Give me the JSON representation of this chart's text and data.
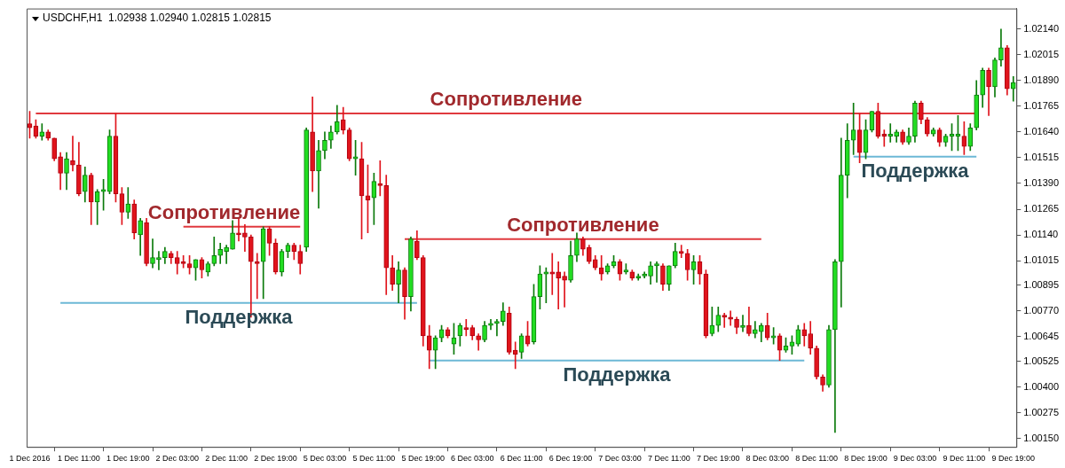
{
  "chart_data": {
    "type": "candlestick",
    "title": "USDCHF,H1  1.02938 1.02940 1.02815 1.02815",
    "categories": [
      "1 Dec 2016",
      null,
      null,
      null,
      null,
      null,
      null,
      null,
      "1 Dec 11:00",
      null,
      null,
      null,
      null,
      null,
      null,
      null,
      "1 Dec 19:00",
      null,
      null,
      null,
      null,
      null,
      null,
      null,
      "2 Dec 03:00",
      null,
      null,
      null,
      null,
      null,
      null,
      null,
      "2 Dec 11:00",
      null,
      null,
      null,
      null,
      null,
      null,
      null,
      "2 Dec 19:00",
      null,
      null,
      null,
      null,
      null,
      null,
      null,
      "5 Dec 03:00",
      null,
      null,
      null,
      null,
      null,
      null,
      null,
      "5 Dec 11:00",
      null,
      null,
      null,
      null,
      null,
      null,
      null,
      "5 Dec 19:00",
      null,
      null,
      null,
      null,
      null,
      null,
      null,
      "6 Dec 03:00",
      null,
      null,
      null,
      null,
      null,
      null,
      null,
      "6 Dec 11:00",
      null,
      null,
      null,
      null,
      null,
      null,
      null,
      "6 Dec 19:00",
      null,
      null,
      null,
      null,
      null,
      null,
      null,
      "7 Dec 03:00",
      null,
      null,
      null,
      null,
      null,
      null,
      null,
      "7 Dec 11:00",
      null,
      null,
      null,
      null,
      null,
      null,
      null,
      "7 Dec 19:00",
      null,
      null,
      null,
      null,
      null,
      null,
      null,
      "8 Dec 03:00",
      null,
      null,
      null,
      null,
      null,
      null,
      null,
      "8 Dec 11:00",
      null,
      null,
      null,
      null,
      null,
      null,
      null,
      "8 Dec 19:00",
      null,
      null,
      null,
      null,
      null,
      null,
      null,
      "9 Dec 03:00",
      null,
      null,
      null,
      null,
      null,
      null,
      null,
      "9 Dec 11:00",
      null,
      null,
      null,
      null,
      null,
      null,
      null,
      "9 Dec 19:00"
    ],
    "ohlc": [
      [
        1.0168,
        1.0174,
        1.0161,
        1.0166
      ],
      [
        1.0167,
        1.017,
        1.0161,
        1.0162
      ],
      [
        1.0162,
        1.0168,
        1.016,
        1.0164
      ],
      [
        1.0164,
        1.0165,
        1.016,
        1.0161
      ],
      [
        1.0161,
        1.0161,
        1.015,
        1.0151
      ],
      [
        1.0152,
        1.0154,
        1.0136,
        1.0144
      ],
      [
        1.0144,
        1.0154,
        1.0136,
        1.0151
      ],
      [
        1.015,
        1.0162,
        1.0145,
        1.0148
      ],
      [
        1.0148,
        1.0159,
        1.0133,
        1.0134
      ],
      [
        1.0135,
        1.0147,
        1.013,
        1.0143
      ],
      [
        1.0143,
        1.0144,
        1.0119,
        1.013
      ],
      [
        1.013,
        1.0136,
        1.0119,
        1.0135
      ],
      [
        1.0135,
        1.0141,
        1.0126,
        1.0136
      ],
      [
        1.0135,
        1.0165,
        1.0134,
        1.0162
      ],
      [
        1.0162,
        1.0173,
        1.013,
        1.0134
      ],
      [
        1.0134,
        1.0137,
        1.0119,
        1.0125
      ],
      [
        1.0125,
        1.0137,
        1.0122,
        1.0129
      ],
      [
        1.0129,
        1.0131,
        1.0112,
        1.0115
      ],
      [
        1.0114,
        1.0122,
        1.0104,
        1.0121
      ],
      [
        1.012,
        1.0122,
        1.0099,
        1.01
      ],
      [
        1.01,
        1.0112,
        1.0098,
        1.0103
      ],
      [
        1.0102,
        1.0106,
        1.0097,
        1.0103
      ],
      [
        1.0103,
        1.0108,
        1.01,
        1.0106
      ],
      [
        1.0105,
        1.0106,
        1.01,
        1.0103
      ],
      [
        1.0103,
        1.0106,
        1.0095,
        1.01
      ],
      [
        1.0101,
        1.0104,
        1.0098,
        1.01
      ],
      [
        1.01,
        1.0104,
        1.0095,
        1.0098
      ],
      [
        1.0098,
        1.0102,
        1.0092,
        1.0102
      ],
      [
        1.0102,
        1.0103,
        1.0093,
        1.0097
      ],
      [
        1.0096,
        1.0101,
        1.0094,
        1.01
      ],
      [
        1.01,
        1.0113,
        1.0099,
        1.0104
      ],
      [
        1.0104,
        1.011,
        1.01,
        1.0107
      ],
      [
        1.0106,
        1.0109,
        1.01,
        1.0108
      ],
      [
        1.0107,
        1.0121,
        1.0107,
        1.0115
      ],
      [
        1.0115,
        1.0122,
        1.0111,
        1.0114
      ],
      [
        1.0115,
        1.0119,
        1.0106,
        1.0113
      ],
      [
        1.0113,
        1.0114,
        1.0074,
        1.0101
      ],
      [
        1.0101,
        1.0105,
        1.0083,
        1.01
      ],
      [
        1.0101,
        1.0118,
        1.0083,
        1.0117
      ],
      [
        1.0117,
        1.0118,
        1.0104,
        1.011
      ],
      [
        1.011,
        1.0112,
        1.0095,
        1.0096
      ],
      [
        1.0096,
        1.0107,
        1.0094,
        1.0106
      ],
      [
        1.0106,
        1.011,
        1.0103,
        1.0109
      ],
      [
        1.0109,
        1.011,
        1.0102,
        1.0106
      ],
      [
        1.0106,
        1.0109,
        1.0095,
        1.01
      ],
      [
        1.0108,
        1.0166,
        1.0106,
        1.0165
      ],
      [
        1.0164,
        1.0181,
        1.0135,
        1.0145
      ],
      [
        1.0145,
        1.016,
        1.0127,
        1.0155
      ],
      [
        1.0155,
        1.0164,
        1.0151,
        1.016
      ],
      [
        1.016,
        1.0167,
        1.0156,
        1.0164
      ],
      [
        1.0164,
        1.0177,
        1.0163,
        1.0169
      ],
      [
        1.017,
        1.0176,
        1.0163,
        1.0165
      ],
      [
        1.0165,
        1.0166,
        1.015,
        1.0151
      ],
      [
        1.0151,
        1.016,
        1.0143,
        1.0152
      ],
      [
        1.0151,
        1.0159,
        1.0112,
        1.0133
      ],
      [
        1.0133,
        1.0148,
        1.0115,
        1.0131
      ],
      [
        1.0132,
        1.0144,
        1.0119,
        1.014
      ],
      [
        1.0139,
        1.015,
        1.0133,
        1.0138
      ],
      [
        1.0138,
        1.0143,
        1.0085,
        1.0098
      ],
      [
        1.0098,
        1.0104,
        1.0087,
        1.009
      ],
      [
        1.009,
        1.0101,
        1.0081,
        1.0097
      ],
      [
        1.0097,
        1.0098,
        1.0073,
        1.0084
      ],
      [
        1.0084,
        1.0113,
        1.0077,
        1.0112
      ],
      [
        1.0111,
        1.0116,
        1.0102,
        1.0103
      ],
      [
        1.0103,
        1.0104,
        1.006,
        1.0065
      ],
      [
        1.0065,
        1.007,
        1.0049,
        1.0058
      ],
      [
        1.0058,
        1.0065,
        1.0049,
        1.0064
      ],
      [
        1.0064,
        1.007,
        1.0062,
        1.0068
      ],
      [
        1.0068,
        1.0069,
        1.0064,
        1.0065
      ],
      [
        1.0061,
        1.0071,
        1.0056,
        1.0064
      ],
      [
        1.0065,
        1.0071,
        1.006,
        1.007
      ],
      [
        1.0069,
        1.0073,
        1.0065,
        1.0068
      ],
      [
        1.0069,
        1.007,
        1.0063,
        1.0065
      ],
      [
        1.0065,
        1.0066,
        1.0058,
        1.0063
      ],
      [
        1.0063,
        1.0072,
        1.0062,
        1.007
      ],
      [
        1.007,
        1.0073,
        1.0068,
        1.0071
      ],
      [
        1.0071,
        1.0073,
        1.0065,
        1.0072
      ],
      [
        1.0072,
        1.0081,
        1.007,
        1.0077
      ],
      [
        1.0076,
        1.0079,
        1.0056,
        1.0057
      ],
      [
        1.0058,
        1.0062,
        1.0049,
        1.0056
      ],
      [
        1.0057,
        1.0066,
        1.0054,
        1.0065
      ],
      [
        1.0065,
        1.0072,
        1.006,
        1.0061
      ],
      [
        1.0062,
        1.009,
        1.0061,
        1.0084
      ],
      [
        1.0084,
        1.0099,
        1.0078,
        1.0095
      ],
      [
        1.0095,
        1.0098,
        1.0081,
        1.0096
      ],
      [
        1.0096,
        1.0105,
        1.0085,
        1.0095
      ],
      [
        1.0096,
        1.0101,
        1.0078,
        1.0093
      ],
      [
        1.0094,
        1.0096,
        1.0079,
        1.0092
      ],
      [
        1.0092,
        1.0111,
        1.0091,
        1.0104
      ],
      [
        1.0104,
        1.0115,
        1.0101,
        1.0112
      ],
      [
        1.0112,
        1.0113,
        1.0104,
        1.0107
      ],
      [
        1.0108,
        1.0109,
        1.01,
        1.0101
      ],
      [
        1.0102,
        1.0104,
        1.0097,
        1.0098
      ],
      [
        1.0098,
        1.0104,
        1.0092,
        1.0095
      ],
      [
        1.0096,
        1.01,
        1.0095,
        1.0099
      ],
      [
        1.0099,
        1.0104,
        1.0098,
        1.0101
      ],
      [
        1.0101,
        1.0102,
        1.0092,
        1.0095
      ],
      [
        1.0096,
        1.01,
        1.0095,
        1.0097
      ],
      [
        1.0096,
        1.0097,
        1.0092,
        1.0093
      ],
      [
        1.0093,
        1.0095,
        1.0092,
        1.0094
      ],
      [
        1.0094,
        1.0096,
        1.0093,
        1.0095
      ],
      [
        1.0094,
        1.0101,
        1.009,
        1.0099
      ],
      [
        1.0099,
        1.0101,
        1.0091,
        1.01
      ],
      [
        1.0099,
        1.01,
        1.0087,
        1.009
      ],
      [
        1.009,
        1.0099,
        1.0087,
        1.0099
      ],
      [
        1.0099,
        1.011,
        1.0098,
        1.0106
      ],
      [
        1.0106,
        1.0109,
        1.0103,
        1.0105
      ],
      [
        1.0105,
        1.0107,
        1.0092,
        1.0097
      ],
      [
        1.0097,
        1.0104,
        1.009,
        1.0101
      ],
      [
        1.0101,
        1.0104,
        1.009,
        1.0095
      ],
      [
        1.0095,
        1.0097,
        1.0064,
        1.0065
      ],
      [
        1.0066,
        1.0079,
        1.0065,
        1.007
      ],
      [
        1.007,
        1.0079,
        1.0067,
        1.0075
      ],
      [
        1.0075,
        1.0076,
        1.0069,
        1.0074
      ],
      [
        1.0074,
        1.0077,
        1.007,
        1.0073
      ],
      [
        1.0073,
        1.0074,
        1.0066,
        1.0069
      ],
      [
        1.0069,
        1.0075,
        1.0067,
        1.007
      ],
      [
        1.007,
        1.0079,
        1.0065,
        1.0066
      ],
      [
        1.0066,
        1.0072,
        1.0064,
        1.0068
      ],
      [
        1.0067,
        1.0071,
        1.0062,
        1.007
      ],
      [
        1.007,
        1.0076,
        1.0063,
        1.0064
      ],
      [
        1.0064,
        1.0069,
        1.0061,
        1.0065
      ],
      [
        1.0065,
        1.0066,
        1.0053,
        1.0058
      ],
      [
        1.0058,
        1.0064,
        1.0057,
        1.006
      ],
      [
        1.006,
        1.0065,
        1.0056,
        1.0062
      ],
      [
        1.0061,
        1.007,
        1.006,
        1.0068
      ],
      [
        1.0068,
        1.0071,
        1.006,
        1.0065
      ],
      [
        1.0066,
        1.0072,
        1.0056,
        1.0059
      ],
      [
        1.0059,
        1.006,
        1.0044,
        1.0045
      ],
      [
        1.0045,
        1.0046,
        1.0038,
        1.0041
      ],
      [
        1.0041,
        1.007,
        1.004,
        1.0068
      ],
      [
        1.0068,
        1.0102,
        1.0018,
        1.0101
      ],
      [
        1.0101,
        1.0161,
        1.0079,
        1.0143
      ],
      [
        1.0143,
        1.0168,
        1.0132,
        1.016
      ],
      [
        1.016,
        1.0178,
        1.0153,
        1.0165
      ],
      [
        1.0165,
        1.0173,
        1.0149,
        1.0154
      ],
      [
        1.0154,
        1.017,
        1.0151,
        1.0165
      ],
      [
        1.0165,
        1.0174,
        1.0164,
        1.0174
      ],
      [
        1.0174,
        1.0178,
        1.0161,
        1.0162
      ],
      [
        1.0163,
        1.0165,
        1.0157,
        1.0162
      ],
      [
        1.0162,
        1.0168,
        1.0159,
        1.0163
      ],
      [
        1.0162,
        1.0165,
        1.0159,
        1.0164
      ],
      [
        1.0164,
        1.0165,
        1.0158,
        1.0159
      ],
      [
        1.0159,
        1.0166,
        1.0158,
        1.0162
      ],
      [
        1.0162,
        1.0179,
        1.0159,
        1.0178
      ],
      [
        1.0178,
        1.0179,
        1.0168,
        1.017
      ],
      [
        1.017,
        1.0171,
        1.0162,
        1.0163
      ],
      [
        1.0163,
        1.0166,
        1.0162,
        1.0165
      ],
      [
        1.0165,
        1.0166,
        1.0157,
        1.0159
      ],
      [
        1.0159,
        1.0163,
        1.0157,
        1.0162
      ],
      [
        1.0162,
        1.0168,
        1.0155,
        1.0163
      ],
      [
        1.0162,
        1.0172,
        1.0155,
        1.0163
      ],
      [
        1.0162,
        1.0169,
        1.0153,
        1.0157
      ],
      [
        1.0157,
        1.0168,
        1.0155,
        1.0166
      ],
      [
        1.0166,
        1.0189,
        1.0165,
        1.0182
      ],
      [
        1.0182,
        1.0195,
        1.0176,
        1.0194
      ],
      [
        1.0194,
        1.0195,
        1.0172,
        1.0186
      ],
      [
        1.0186,
        1.02,
        1.0181,
        1.0199
      ],
      [
        1.0199,
        1.0214,
        1.0196,
        1.0205
      ],
      [
        1.0205,
        1.0206,
        1.0182,
        1.0185
      ],
      [
        1.0185,
        1.0191,
        1.0179,
        1.0188
      ]
    ],
    "series": [
      {
        "type": "line",
        "name": "Сопротивление",
        "color": "#e0393e",
        "values": [
          null,
          1.0173,
          1.0173,
          1.0173,
          1.0173,
          1.0173,
          1.0173,
          1.0173,
          1.0173,
          1.0173,
          1.0173,
          1.0173,
          1.0173,
          1.0173,
          1.0173,
          1.0173,
          1.0173,
          1.0173,
          1.0173,
          1.0173,
          1.0173,
          1.0173,
          1.0173,
          1.0173,
          1.0173,
          1.0173,
          1.0173,
          1.0173,
          1.0173,
          1.0173,
          1.0173,
          1.0173,
          1.0173,
          1.0173,
          1.0173,
          1.0173,
          1.0173,
          1.0173,
          1.0173,
          1.0173,
          1.0173,
          1.0173,
          1.0173,
          1.0173,
          1.0173,
          1.0173,
          1.0173,
          1.0173,
          1.0173,
          1.0173,
          1.0173,
          1.0173,
          1.0173,
          1.0173,
          1.0173,
          1.0173,
          1.0173,
          1.0173,
          1.0173,
          1.0173,
          1.0173,
          1.0173,
          1.0173,
          1.0173,
          1.0173,
          1.0173,
          1.0173,
          1.0173,
          1.0173,
          1.0173,
          1.0173,
          1.0173,
          1.0173,
          1.0173,
          1.0173,
          1.0173,
          1.0173,
          1.0173,
          1.0173,
          1.0173,
          1.0173,
          1.0173,
          1.0173,
          1.0173,
          1.0173,
          1.0173,
          1.0173,
          1.0173,
          1.0173,
          1.0173,
          1.0173,
          1.0173,
          1.0173,
          1.0173,
          1.0173,
          1.0173,
          1.0173,
          1.0173,
          1.0173,
          1.0173,
          1.0173,
          1.0173,
          1.0173,
          1.0173,
          1.0173,
          1.0173,
          1.0173,
          1.0173,
          1.0173,
          1.0173,
          1.0173,
          1.0173,
          1.0173,
          1.0173,
          1.0173,
          1.0173,
          1.0173,
          1.0173,
          1.0173,
          1.0173,
          1.0173,
          1.0173,
          1.0173,
          1.0173,
          1.0173,
          1.0173,
          1.0173,
          1.0173,
          1.0173,
          1.0173,
          1.0173,
          1.0173,
          1.0173,
          1.0173,
          1.0173,
          1.0173,
          1.0173,
          1.0173,
          1.0173,
          1.0173,
          1.0173,
          1.0173,
          1.0173,
          1.0173,
          1.0173,
          1.0173,
          1.0173,
          1.0173,
          1.0173,
          1.0173,
          1.0173,
          1.0173,
          1.0173,
          1.0173,
          1.0173,
          null,
          null,
          null,
          null,
          null,
          null
        ]
      },
      {
        "type": "line",
        "name": "Сопротивление",
        "color": "#e0393e",
        "values": [
          null,
          null,
          null,
          null,
          null,
          null,
          null,
          null,
          null,
          null,
          null,
          null,
          null,
          null,
          null,
          null,
          null,
          null,
          null,
          null,
          null,
          null,
          null,
          null,
          null,
          1.0118,
          1.0118,
          1.0118,
          1.0118,
          1.0118,
          1.0118,
          1.0118,
          1.0118,
          1.0118,
          1.0118,
          1.0118,
          1.0118,
          1.0118,
          1.0118,
          1.0118,
          1.0118,
          1.0118,
          1.0118,
          1.0118,
          1.0118,
          null,
          null,
          null,
          null,
          null,
          null,
          null,
          null,
          null,
          null,
          null,
          null,
          null,
          null,
          null,
          null,
          null,
          null,
          null,
          null,
          null,
          null,
          null,
          null,
          null,
          null,
          null,
          null,
          null,
          null,
          null,
          null,
          null,
          null,
          null,
          null,
          null,
          null,
          null,
          null,
          null,
          null,
          null,
          null,
          null,
          null,
          null,
          null,
          null,
          null,
          null,
          null,
          null,
          null,
          null,
          null,
          null,
          null,
          null,
          null,
          null,
          null,
          null,
          null,
          null,
          null,
          null,
          null,
          null,
          null,
          null,
          null,
          null,
          null,
          null,
          null,
          null,
          null,
          null,
          null,
          null,
          null,
          null,
          null,
          null,
          null,
          null,
          null,
          null,
          null,
          null,
          null,
          null,
          null,
          null,
          null,
          null,
          null,
          null,
          null,
          null,
          null,
          null,
          null,
          null,
          null,
          null,
          null,
          null,
          null,
          null,
          null,
          null,
          null,
          null,
          null
        ]
      },
      {
        "type": "line",
        "name": "Сопротивление",
        "color": "#e0393e",
        "values": [
          null,
          null,
          null,
          null,
          null,
          null,
          null,
          null,
          null,
          null,
          null,
          null,
          null,
          null,
          null,
          null,
          null,
          null,
          null,
          null,
          null,
          null,
          null,
          null,
          null,
          null,
          null,
          null,
          null,
          null,
          null,
          null,
          null,
          null,
          null,
          null,
          null,
          null,
          null,
          null,
          null,
          null,
          null,
          null,
          null,
          null,
          null,
          null,
          null,
          null,
          null,
          null,
          null,
          null,
          null,
          null,
          null,
          null,
          null,
          null,
          null,
          1.0112,
          1.0112,
          1.0112,
          1.0112,
          1.0112,
          1.0112,
          1.0112,
          1.0112,
          1.0112,
          1.0112,
          1.0112,
          1.0112,
          1.0112,
          1.0112,
          1.0112,
          1.0112,
          1.0112,
          1.0112,
          1.0112,
          1.0112,
          1.0112,
          1.0112,
          1.0112,
          1.0112,
          1.0112,
          1.0112,
          1.0112,
          1.0112,
          1.0112,
          1.0112,
          1.0112,
          1.0112,
          1.0112,
          1.0112,
          1.0112,
          1.0112,
          1.0112,
          1.0112,
          1.0112,
          1.0112,
          1.0112,
          1.0112,
          1.0112,
          1.0112,
          1.0112,
          1.0112,
          1.0112,
          1.0112,
          1.0112,
          1.0112,
          1.0112,
          1.0112,
          1.0112,
          1.0112,
          1.0112,
          1.0112,
          1.0112,
          1.0112,
          1.0112,
          null,
          null,
          null,
          null,
          null,
          null,
          null,
          null,
          null,
          null,
          null,
          null,
          null,
          null,
          null,
          null,
          null,
          null,
          null,
          null,
          null,
          null,
          null,
          null,
          null,
          null,
          null,
          null,
          null,
          null,
          null,
          null,
          null,
          null,
          null,
          null,
          null,
          null,
          null,
          null,
          null
        ]
      },
      {
        "type": "line",
        "name": "Поддержка",
        "color": "#6cb8d6",
        "values": [
          null,
          null,
          null,
          null,
          null,
          1.0081,
          1.0081,
          1.0081,
          1.0081,
          1.0081,
          1.0081,
          1.0081,
          1.0081,
          1.0081,
          1.0081,
          1.0081,
          1.0081,
          1.0081,
          1.0081,
          1.0081,
          1.0081,
          1.0081,
          1.0081,
          1.0081,
          1.0081,
          1.0081,
          1.0081,
          1.0081,
          1.0081,
          1.0081,
          1.0081,
          1.0081,
          1.0081,
          1.0081,
          1.0081,
          1.0081,
          1.0081,
          1.0081,
          1.0081,
          1.0081,
          1.0081,
          1.0081,
          1.0081,
          1.0081,
          1.0081,
          1.0081,
          1.0081,
          1.0081,
          1.0081,
          1.0081,
          1.0081,
          1.0081,
          1.0081,
          1.0081,
          1.0081,
          1.0081,
          1.0081,
          1.0081,
          1.0081,
          1.0081,
          1.0081,
          1.0081,
          1.0081,
          1.0081,
          null,
          null,
          null,
          null,
          null,
          null,
          null,
          null,
          null,
          null,
          null,
          null,
          null,
          null,
          null,
          null,
          null,
          null,
          null,
          null,
          null,
          null,
          null,
          null,
          null,
          null,
          null,
          null,
          null,
          null,
          null,
          null,
          null,
          null,
          null,
          null,
          null,
          null,
          null,
          null,
          null,
          null,
          null,
          null,
          null,
          null,
          null,
          null,
          null,
          null,
          null,
          null,
          null,
          null,
          null,
          null,
          null,
          null,
          null,
          null,
          null,
          null,
          null,
          null,
          null,
          null,
          null,
          null,
          null,
          null,
          null,
          null,
          null,
          null,
          null,
          null,
          null,
          null,
          null,
          null,
          null,
          null,
          null,
          null,
          null,
          null,
          null,
          null,
          null,
          null,
          null,
          null,
          null,
          null,
          null,
          null,
          null
        ]
      },
      {
        "type": "line",
        "name": "Поддержка",
        "color": "#6cb8d6",
        "values": [
          null,
          null,
          null,
          null,
          null,
          null,
          null,
          null,
          null,
          null,
          null,
          null,
          null,
          null,
          null,
          null,
          null,
          null,
          null,
          null,
          null,
          null,
          null,
          null,
          null,
          null,
          null,
          null,
          null,
          null,
          null,
          null,
          null,
          null,
          null,
          null,
          null,
          null,
          null,
          null,
          null,
          null,
          null,
          null,
          null,
          null,
          null,
          null,
          null,
          null,
          null,
          null,
          null,
          null,
          null,
          null,
          null,
          null,
          null,
          null,
          null,
          null,
          null,
          null,
          null,
          1.0053,
          1.0053,
          1.0053,
          1.0053,
          1.0053,
          1.0053,
          1.0053,
          1.0053,
          1.0053,
          1.0053,
          1.0053,
          1.0053,
          1.0053,
          1.0053,
          1.0053,
          1.0053,
          1.0053,
          1.0053,
          1.0053,
          1.0053,
          1.0053,
          1.0053,
          1.0053,
          1.0053,
          1.0053,
          1.0053,
          1.0053,
          1.0053,
          1.0053,
          1.0053,
          1.0053,
          1.0053,
          1.0053,
          1.0053,
          1.0053,
          1.0053,
          1.0053,
          1.0053,
          1.0053,
          1.0053,
          1.0053,
          1.0053,
          1.0053,
          1.0053,
          1.0053,
          1.0053,
          1.0053,
          1.0053,
          1.0053,
          1.0053,
          1.0053,
          1.0053,
          1.0053,
          1.0053,
          1.0053,
          1.0053,
          1.0053,
          1.0053,
          1.0053,
          1.0053,
          1.0053,
          1.0053,
          null,
          null,
          null,
          null,
          null,
          null,
          null,
          null,
          null,
          null,
          null,
          null,
          null,
          null,
          null,
          null,
          null,
          null,
          null,
          null,
          null,
          null,
          null,
          null,
          null,
          null,
          null,
          null,
          null,
          null,
          null,
          null,
          null,
          null
        ]
      },
      {
        "type": "line",
        "name": "Поддержка",
        "color": "#6cb8d6",
        "values": [
          null,
          null,
          null,
          null,
          null,
          null,
          null,
          null,
          null,
          null,
          null,
          null,
          null,
          null,
          null,
          null,
          null,
          null,
          null,
          null,
          null,
          null,
          null,
          null,
          null,
          null,
          null,
          null,
          null,
          null,
          null,
          null,
          null,
          null,
          null,
          null,
          null,
          null,
          null,
          null,
          null,
          null,
          null,
          null,
          null,
          null,
          null,
          null,
          null,
          null,
          null,
          null,
          null,
          null,
          null,
          null,
          null,
          null,
          null,
          null,
          null,
          null,
          null,
          null,
          null,
          null,
          null,
          null,
          null,
          null,
          null,
          null,
          null,
          null,
          null,
          null,
          null,
          null,
          null,
          null,
          null,
          null,
          null,
          null,
          null,
          null,
          null,
          null,
          null,
          null,
          null,
          null,
          null,
          null,
          null,
          null,
          null,
          null,
          null,
          null,
          null,
          null,
          null,
          null,
          null,
          null,
          null,
          null,
          null,
          null,
          null,
          null,
          null,
          null,
          null,
          null,
          null,
          null,
          null,
          null,
          null,
          null,
          null,
          null,
          null,
          null,
          null,
          null,
          null,
          null,
          null,
          null,
          null,
          null,
          1.0152,
          1.0152,
          1.0152,
          1.0152,
          1.0152,
          1.0152,
          1.0152,
          1.0152,
          1.0152,
          1.0152,
          1.0152,
          1.0152,
          1.0152,
          1.0152,
          1.0152,
          1.0152,
          1.0152,
          1.0152,
          1.0152,
          1.0152,
          1.0152,
          null,
          null,
          null,
          null,
          null,
          null
        ]
      }
    ],
    "ylim": [
      1.0011,
      1.0224
    ],
    "yticks": [
      {
        "value": 1.0214,
        "label": "1.02140"
      },
      1.02015,
      {
        "value": 1.0189,
        "label": "1.01890"
      },
      1.01765,
      {
        "value": 1.0164,
        "label": "1.01640"
      },
      1.01515,
      {
        "value": 1.0139,
        "label": "1.01390"
      },
      1.01265,
      {
        "value": 1.0114,
        "label": "1.01140"
      },
      1.01015,
      1.00895,
      {
        "value": 1.0077,
        "label": "1.00770"
      },
      1.00645,
      1.00525,
      {
        "value": 1.004,
        "label": "1.00400"
      },
      1.00275,
      {
        "value": 1.0015,
        "label": "1.00150"
      }
    ]
  }
}
